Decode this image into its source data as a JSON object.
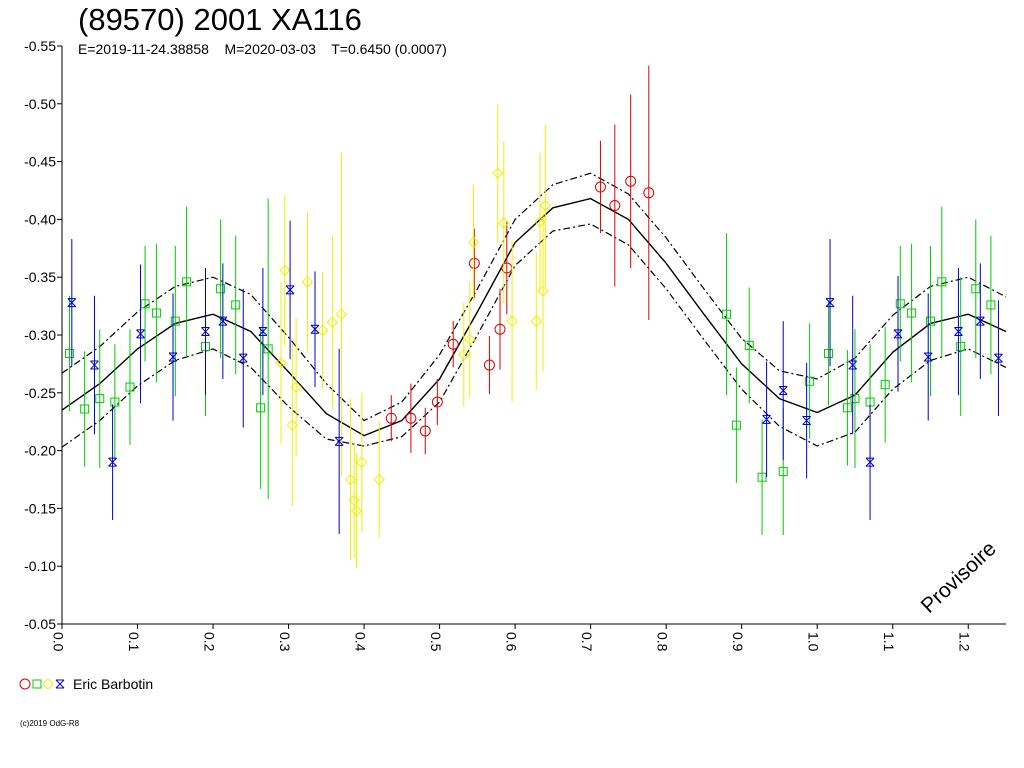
{
  "title": "(89570) 2001 XA116",
  "subtitle": "E=2019-11-24.38858    M=2020-03-03    T=0.6450 (0.0007)",
  "watermark": "Provisoire",
  "legend_label": "Eric Barbotin",
  "copyright": "(c)2019 OdG-R8",
  "colors": {
    "red": "#e00000",
    "green": "#00cc00",
    "yellow": "#f0f000",
    "blue": "#0000cc",
    "curve": "#000000"
  },
  "chart_data": {
    "type": "scatter",
    "xlim": [
      0.0,
      1.25
    ],
    "ylim": [
      -0.55,
      -0.05
    ],
    "x_ticks": [
      "0.0",
      "0.1",
      "0.2",
      "0.3",
      "0.4",
      "0.5",
      "0.6",
      "0.7",
      "0.8",
      "0.9",
      "1.0",
      "1.1",
      "1.2"
    ],
    "y_ticks": [
      "-0.55",
      "-0.50",
      "-0.45",
      "-0.40",
      "-0.35",
      "-0.30",
      "-0.25",
      "-0.20",
      "-0.15",
      "-0.10",
      "-0.05"
    ],
    "fit_curve": {
      "style": "solid",
      "points": [
        [
          0.0,
          -0.235
        ],
        [
          0.05,
          -0.258
        ],
        [
          0.1,
          -0.288
        ],
        [
          0.15,
          -0.31
        ],
        [
          0.2,
          -0.318
        ],
        [
          0.25,
          -0.303
        ],
        [
          0.3,
          -0.268
        ],
        [
          0.35,
          -0.232
        ],
        [
          0.4,
          -0.213
        ],
        [
          0.45,
          -0.226
        ],
        [
          0.5,
          -0.262
        ],
        [
          0.55,
          -0.32
        ],
        [
          0.6,
          -0.38
        ],
        [
          0.65,
          -0.41
        ],
        [
          0.7,
          -0.418
        ],
        [
          0.75,
          -0.4
        ],
        [
          0.8,
          -0.362
        ],
        [
          0.85,
          -0.318
        ],
        [
          0.9,
          -0.275
        ],
        [
          0.95,
          -0.245
        ],
        [
          1.0,
          -0.233
        ],
        [
          1.05,
          -0.248
        ],
        [
          1.1,
          -0.285
        ],
        [
          1.15,
          -0.31
        ],
        [
          1.2,
          -0.318
        ],
        [
          1.25,
          -0.303
        ]
      ]
    },
    "envelope_upper": {
      "style": "dash-dot",
      "points": [
        [
          0.0,
          -0.267
        ],
        [
          0.05,
          -0.29
        ],
        [
          0.1,
          -0.32
        ],
        [
          0.15,
          -0.342
        ],
        [
          0.2,
          -0.35
        ],
        [
          0.25,
          -0.335
        ],
        [
          0.3,
          -0.298
        ],
        [
          0.35,
          -0.258
        ],
        [
          0.4,
          -0.226
        ],
        [
          0.45,
          -0.242
        ],
        [
          0.5,
          -0.283
        ],
        [
          0.55,
          -0.34
        ],
        [
          0.6,
          -0.4
        ],
        [
          0.65,
          -0.43
        ],
        [
          0.7,
          -0.44
        ],
        [
          0.75,
          -0.422
        ],
        [
          0.8,
          -0.384
        ],
        [
          0.85,
          -0.34
        ],
        [
          0.9,
          -0.297
        ],
        [
          0.95,
          -0.269
        ],
        [
          1.0,
          -0.262
        ],
        [
          1.05,
          -0.28
        ],
        [
          1.1,
          -0.317
        ],
        [
          1.15,
          -0.342
        ],
        [
          1.2,
          -0.35
        ],
        [
          1.25,
          -0.333
        ]
      ]
    },
    "envelope_lower": {
      "style": "dash-dot",
      "points": [
        [
          0.0,
          -0.203
        ],
        [
          0.05,
          -0.226
        ],
        [
          0.1,
          -0.256
        ],
        [
          0.15,
          -0.278
        ],
        [
          0.2,
          -0.288
        ],
        [
          0.25,
          -0.272
        ],
        [
          0.3,
          -0.238
        ],
        [
          0.35,
          -0.21
        ],
        [
          0.4,
          -0.204
        ],
        [
          0.45,
          -0.212
        ],
        [
          0.5,
          -0.242
        ],
        [
          0.55,
          -0.3
        ],
        [
          0.6,
          -0.36
        ],
        [
          0.65,
          -0.39
        ],
        [
          0.7,
          -0.396
        ],
        [
          0.75,
          -0.378
        ],
        [
          0.8,
          -0.34
        ],
        [
          0.85,
          -0.296
        ],
        [
          0.9,
          -0.253
        ],
        [
          0.95,
          -0.221
        ],
        [
          1.0,
          -0.204
        ],
        [
          1.05,
          -0.216
        ],
        [
          1.1,
          -0.253
        ],
        [
          1.15,
          -0.278
        ],
        [
          1.2,
          -0.288
        ],
        [
          1.25,
          -0.272
        ]
      ]
    },
    "series": [
      {
        "color": "red",
        "marker": "circle",
        "points": [
          [
            0.436,
            -0.228,
            0.02
          ],
          [
            0.462,
            -0.228,
            0.03
          ],
          [
            0.481,
            -0.217,
            0.02
          ],
          [
            0.497,
            -0.242,
            0.02
          ],
          [
            0.518,
            -0.292,
            0.02
          ],
          [
            0.546,
            -0.362,
            0.03
          ],
          [
            0.566,
            -0.274,
            0.025
          ],
          [
            0.58,
            -0.305,
            0.035
          ],
          [
            0.589,
            -0.358,
            0.04
          ],
          [
            0.713,
            -0.428,
            0.04
          ],
          [
            0.732,
            -0.412,
            0.07
          ],
          [
            0.753,
            -0.433,
            0.075
          ],
          [
            0.777,
            -0.423,
            0.11
          ]
        ]
      },
      {
        "color": "green",
        "marker": "square",
        "points": [
          [
            0.01,
            -0.284,
            0.05
          ],
          [
            0.03,
            -0.236,
            0.05
          ],
          [
            0.05,
            -0.245,
            0.06
          ],
          [
            0.07,
            -0.242,
            0.05
          ],
          [
            0.09,
            -0.255,
            0.05
          ],
          [
            0.11,
            -0.327,
            0.05
          ],
          [
            0.125,
            -0.319,
            0.06
          ],
          [
            0.15,
            -0.312,
            0.065
          ],
          [
            0.165,
            -0.346,
            0.065
          ],
          [
            0.19,
            -0.29,
            0.06
          ],
          [
            0.21,
            -0.34,
            0.06
          ],
          [
            0.23,
            -0.326,
            0.06
          ],
          [
            0.263,
            -0.237,
            0.07
          ],
          [
            0.273,
            -0.288,
            0.13
          ],
          [
            0.88,
            -0.318,
            0.07
          ],
          [
            0.893,
            -0.222,
            0.05
          ],
          [
            0.91,
            -0.291,
            0.05
          ],
          [
            0.927,
            -0.177,
            0.05
          ],
          [
            0.955,
            -0.182,
            0.055
          ],
          [
            0.99,
            -0.26,
            0.05
          ],
          [
            1.015,
            -0.284,
            0.045
          ],
          [
            1.04,
            -0.237,
            0.05
          ],
          [
            1.05,
            -0.245,
            0.06
          ],
          [
            1.07,
            -0.242,
            0.05
          ],
          [
            1.09,
            -0.257,
            0.05
          ],
          [
            1.11,
            -0.327,
            0.05
          ],
          [
            1.125,
            -0.319,
            0.06
          ],
          [
            1.15,
            -0.312,
            0.065
          ],
          [
            1.165,
            -0.346,
            0.065
          ],
          [
            1.19,
            -0.29,
            0.06
          ],
          [
            1.21,
            -0.34,
            0.06
          ],
          [
            1.23,
            -0.326,
            0.06
          ]
        ]
      },
      {
        "color": "yellow",
        "marker": "diamond",
        "points": [
          [
            0.29,
            -0.276,
            0.07
          ],
          [
            0.295,
            -0.356,
            0.065
          ],
          [
            0.305,
            -0.222,
            0.07
          ],
          [
            0.31,
            -0.255,
            0.06
          ],
          [
            0.325,
            -0.346,
            0.06
          ],
          [
            0.345,
            -0.304,
            0.05
          ],
          [
            0.358,
            -0.311,
            0.075
          ],
          [
            0.37,
            -0.318,
            0.14
          ],
          [
            0.382,
            -0.175,
            0.07
          ],
          [
            0.387,
            -0.157,
            0.05
          ],
          [
            0.39,
            -0.148,
            0.05
          ],
          [
            0.397,
            -0.19,
            0.06
          ],
          [
            0.42,
            -0.175,
            0.05
          ],
          [
            0.532,
            -0.283,
            0.045
          ],
          [
            0.54,
            -0.296,
            0.05
          ],
          [
            0.545,
            -0.38,
            0.05
          ],
          [
            0.577,
            -0.44,
            0.06
          ],
          [
            0.585,
            -0.397,
            0.07
          ],
          [
            0.596,
            -0.312,
            0.07
          ],
          [
            0.628,
            -0.312,
            0.06
          ],
          [
            0.633,
            -0.398,
            0.06
          ],
          [
            0.637,
            -0.338,
            0.07
          ],
          [
            0.64,
            -0.412,
            0.07
          ]
        ]
      },
      {
        "color": "blue",
        "marker": "star",
        "points": [
          [
            0.013,
            -0.328,
            0.055
          ],
          [
            0.043,
            -0.274,
            0.06
          ],
          [
            0.067,
            -0.19,
            0.05
          ],
          [
            0.104,
            -0.301,
            0.06
          ],
          [
            0.147,
            -0.281,
            0.055
          ],
          [
            0.19,
            -0.303,
            0.055
          ],
          [
            0.213,
            -0.312,
            0.05
          ],
          [
            0.24,
            -0.28,
            0.06
          ],
          [
            0.266,
            -0.303,
            0.055
          ],
          [
            0.302,
            -0.339,
            0.06
          ],
          [
            0.335,
            -0.305,
            0.05
          ],
          [
            0.367,
            -0.208,
            0.08
          ],
          [
            0.933,
            -0.227,
            0.05
          ],
          [
            0.955,
            -0.252,
            0.06
          ],
          [
            0.986,
            -0.226,
            0.05
          ],
          [
            1.017,
            -0.328,
            0.055
          ],
          [
            1.047,
            -0.274,
            0.06
          ],
          [
            1.07,
            -0.19,
            0.05
          ],
          [
            1.107,
            -0.301,
            0.05
          ],
          [
            1.147,
            -0.281,
            0.055
          ],
          [
            1.187,
            -0.303,
            0.055
          ],
          [
            1.216,
            -0.312,
            0.05
          ],
          [
            1.24,
            -0.28,
            0.05
          ]
        ]
      }
    ]
  }
}
